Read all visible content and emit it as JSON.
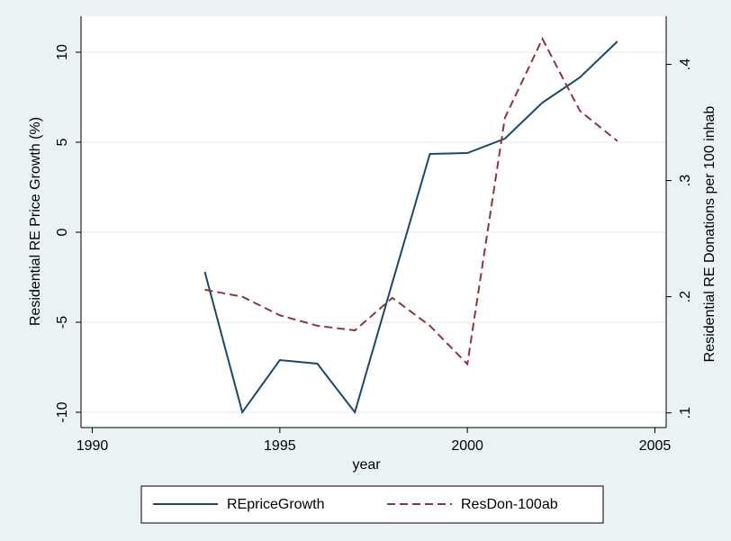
{
  "chart_data": {
    "type": "line",
    "x": [
      1993,
      1994,
      1995,
      1996,
      1997,
      1998,
      1999,
      2000,
      2001,
      2002,
      2003,
      2004
    ],
    "xlabel": "year",
    "ylabel": "Residential RE Price Growth (%)",
    "y2label": "Residential RE Donations per 100 inhab",
    "series": [
      {
        "name": "REpriceGrowth",
        "color": "#1a476f",
        "dash": false,
        "values": [
          -2.2,
          -10,
          -7.1,
          -7.3,
          -10,
          -2.8,
          4.35,
          4.4,
          5.2,
          7.2,
          8.6,
          10.6
        ]
      },
      {
        "name": "ResDon-100ab",
        "color": "#90353b",
        "dash": true,
        "axis": "y2",
        "values": [
          0.206,
          0.2,
          0.184,
          0.175,
          0.171,
          0.199,
          0.175,
          0.142,
          0.354,
          0.422,
          0.36,
          0.334
        ]
      }
    ],
    "xlim": [
      1989.7,
      2005.3
    ],
    "xticks": [
      1990,
      1995,
      2000,
      2005
    ],
    "ylim": [
      -11,
      11
    ],
    "yticks": [
      -10,
      -5,
      0,
      5,
      10
    ],
    "y2lim": [
      0.085,
      0.426
    ],
    "y2ticks": [
      {
        "value": 0.1,
        "label": ".1"
      },
      {
        "value": 0.2,
        "label": ".2"
      },
      {
        "value": 0.3,
        "label": ".3"
      },
      {
        "value": 0.4,
        "label": ".4"
      }
    ],
    "grid": true,
    "legend": "bottom"
  }
}
